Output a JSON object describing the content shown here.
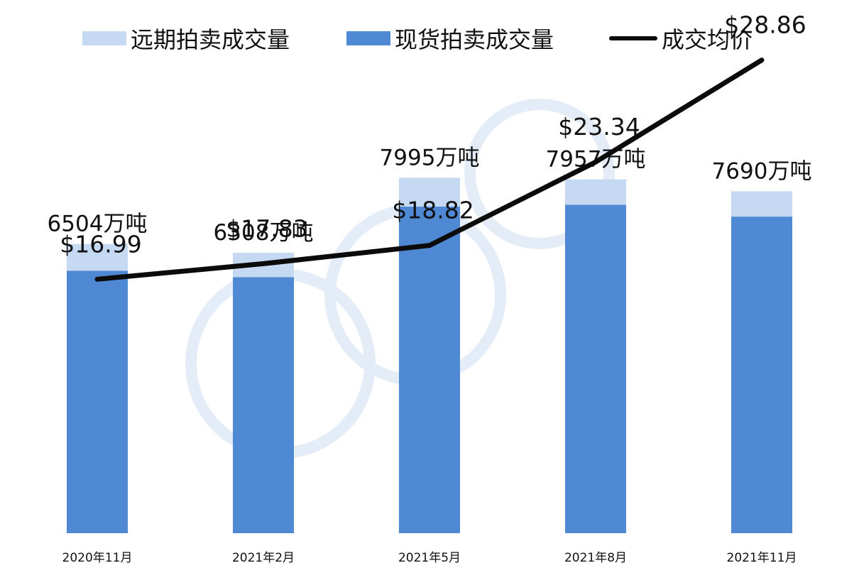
{
  "chart_data": {
    "type": "bar",
    "categories": [
      "2020年11月",
      "2021年2月",
      "2021年5月",
      "2021年8月",
      "2021年11月"
    ],
    "totals": [
      6504,
      6308,
      7995,
      7957,
      7690
    ],
    "total_labels": [
      "6504万吨",
      "6308万吨",
      "7995万吨",
      "7957万吨",
      "7690万吨"
    ],
    "series": [
      {
        "name": "远期拍卖成交量",
        "kind": "bar",
        "stack": "volume",
        "color": "#c5d9f2",
        "values": [
          600,
          550,
          650,
          570,
          570
        ]
      },
      {
        "name": "现货拍卖成交量",
        "kind": "bar",
        "stack": "volume",
        "color": "#4f89d3",
        "values": [
          5904,
          5758,
          7345,
          7387,
          7120
        ]
      },
      {
        "name": "成交均价",
        "kind": "line",
        "color": "#0b0b0b",
        "values": [
          16.99,
          17.83,
          18.82,
          23.34,
          28.86
        ]
      }
    ],
    "price_labels": [
      "$16.99",
      "$17.83",
      "$18.82",
      "$23.34",
      "$28.86"
    ],
    "xlabel": "",
    "ylabel": "",
    "ylim": [
      0,
      8000
    ],
    "ylim_line": [
      5,
      30
    ],
    "grid": false,
    "legend_position": "top"
  },
  "colors": {
    "forward_volume": "#c5d9f2",
    "spot_volume": "#4f89d3",
    "avg_price_line": "#0b0b0b",
    "watermark": "#dde8f5"
  }
}
